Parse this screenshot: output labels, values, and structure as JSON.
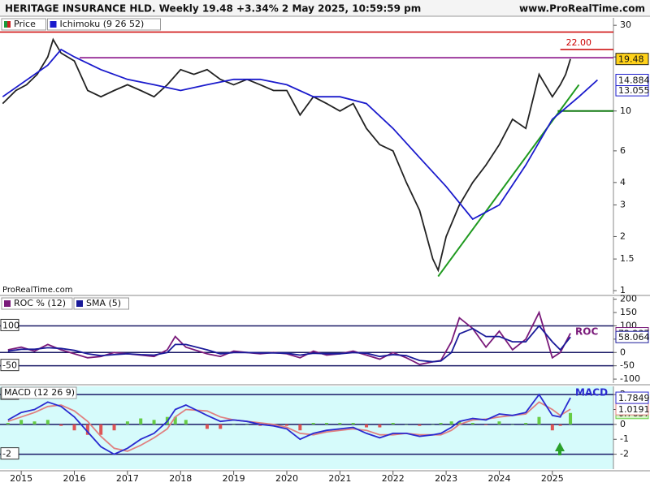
{
  "header": {
    "title": "HERITAGE INSURANCE HLD. Weekly 19.48 +3.34% 2 May 2025, 10:59:59 pm",
    "site": "www.ProRealTime.com"
  },
  "watermark": "ProRealTime.com",
  "chart_data": [
    {
      "type": "line",
      "log": true,
      "grid": false,
      "xlim": [
        2014.6,
        2026.15
      ],
      "ylim": [
        0.96,
        33
      ],
      "yticks": [
        1,
        1.5,
        2,
        3,
        4,
        6,
        10,
        20,
        30
      ],
      "series": [
        {
          "name": "Price",
          "color": "#222222",
          "legend_colors": [
            "#1a9a3a",
            "#cc2222"
          ],
          "last_label": "#ffd21a",
          "x": [
            2014.65,
            2014.9,
            2015.1,
            2015.3,
            2015.5,
            2015.6,
            2015.75,
            2016.0,
            2016.25,
            2016.5,
            2016.75,
            2017.0,
            2017.25,
            2017.5,
            2017.75,
            2018.0,
            2018.25,
            2018.5,
            2018.75,
            2019.0,
            2019.25,
            2019.5,
            2019.75,
            2020.0,
            2020.25,
            2020.5,
            2020.75,
            2021.0,
            2021.25,
            2021.5,
            2021.75,
            2022.0,
            2022.25,
            2022.5,
            2022.75,
            2022.85,
            2023.0,
            2023.25,
            2023.5,
            2023.75,
            2024.0,
            2024.25,
            2024.5,
            2024.75,
            2025.0,
            2025.15,
            2025.25,
            2025.34
          ],
          "values": [
            11,
            13,
            14,
            16,
            20,
            25,
            21,
            19,
            13,
            12,
            13,
            14,
            13,
            12,
            14,
            17,
            16,
            17,
            15,
            14,
            15,
            14,
            13,
            13,
            9.5,
            12,
            11,
            10,
            11,
            8,
            6.5,
            6,
            4,
            2.8,
            1.5,
            1.3,
            2,
            3,
            4,
            5,
            6.5,
            9,
            8,
            16,
            12,
            14,
            16,
            19.48
          ]
        },
        {
          "name": "Ichimoku (9 26 52)",
          "color": "#1a1acc",
          "last_label": "#ffffff",
          "x": [
            2014.65,
            2015.5,
            2015.75,
            2016.0,
            2016.5,
            2017.0,
            2017.5,
            2018.0,
            2018.5,
            2019.0,
            2019.5,
            2020.0,
            2020.5,
            2021.0,
            2021.5,
            2022.0,
            2022.5,
            2023.0,
            2023.5,
            2024.0,
            2024.5,
            2025.0,
            2025.5,
            2025.85
          ],
          "values": [
            12,
            18,
            22,
            20,
            17,
            15,
            14,
            13,
            14,
            15,
            15,
            14,
            12,
            12,
            11,
            8,
            5.5,
            3.8,
            2.5,
            3,
            5,
            9,
            12,
            14.884
          ]
        }
      ],
      "levels": [
        {
          "value": 27.5,
          "color": "#cc0000"
        },
        {
          "value": 22,
          "label": "22.00",
          "color": "#cc0000",
          "x": [
            2025.15,
            2026.15
          ],
          "label_at": "line"
        },
        {
          "value": 19.8,
          "color": "#800080",
          "x": [
            2016.1,
            2026.15
          ]
        },
        {
          "value": 13.055,
          "color": "#1a1acc",
          "line": false,
          "label_at": "right"
        }
      ],
      "trendlines": [
        {
          "x": [
            2022.85,
            2025.5
          ],
          "values": [
            1.2,
            14
          ],
          "color": "#1f9a1f"
        },
        {
          "x": [
            2025.1,
            2026.15
          ],
          "values": [
            10,
            10
          ],
          "color": "#137a13"
        }
      ]
    },
    {
      "type": "line",
      "log": false,
      "background": "#ffffff",
      "xlim": [
        2014.6,
        2026.15
      ],
      "ylim": [
        -115,
        208
      ],
      "yticks": [
        -100,
        -50,
        0,
        50,
        100,
        150,
        200
      ],
      "annotation": "ROC",
      "x": [
        2014.75,
        2015,
        2015.25,
        2015.5,
        2015.75,
        2016,
        2016.25,
        2016.5,
        2016.75,
        2017,
        2017.25,
        2017.5,
        2017.75,
        2017.9,
        2018.1,
        2018.5,
        2018.75,
        2019,
        2019.25,
        2019.5,
        2019.75,
        2020,
        2020.25,
        2020.5,
        2020.75,
        2021,
        2021.25,
        2021.5,
        2021.75,
        2022,
        2022.25,
        2022.5,
        2022.75,
        2022.9,
        2023.1,
        2023.25,
        2023.5,
        2023.75,
        2024,
        2024.25,
        2024.5,
        2024.75,
        2025,
        2025.15,
        2025.34
      ],
      "series": [
        {
          "name": "ROC % (12)",
          "color": "#7a1a7a",
          "last_label": "#ffffff",
          "values": [
            10,
            20,
            5,
            30,
            10,
            -5,
            -20,
            -15,
            0,
            -5,
            -10,
            -15,
            10,
            60,
            20,
            -5,
            -15,
            5,
            0,
            -5,
            0,
            -5,
            -20,
            5,
            -10,
            -5,
            5,
            -10,
            -25,
            0,
            -20,
            -45,
            -35,
            -30,
            40,
            130,
            90,
            20,
            80,
            10,
            50,
            150,
            -20,
            0,
            72.237
          ]
        },
        {
          "name": "SMA (5)",
          "color": "#1a1a99",
          "last_label": "#ffffff",
          "values": [
            5,
            12,
            12,
            18,
            15,
            8,
            -5,
            -12,
            -8,
            -5,
            -8,
            -10,
            0,
            30,
            30,
            10,
            -5,
            0,
            0,
            -2,
            -2,
            -3,
            -10,
            -3,
            -5,
            -5,
            0,
            -3,
            -15,
            -8,
            -12,
            -30,
            -35,
            -32,
            0,
            70,
            90,
            60,
            60,
            40,
            40,
            100,
            40,
            10,
            58.064
          ]
        }
      ],
      "levels": [
        {
          "value": 100,
          "color": "#1a1a66",
          "label_at": "left"
        },
        {
          "value": 0,
          "color": "#1a1a66"
        },
        {
          "value": -50,
          "color": "#1a1a66",
          "label_at": "left"
        }
      ]
    },
    {
      "type": "line",
      "log": false,
      "background": "#d6fbfb",
      "xlim": [
        2014.6,
        2026.15
      ],
      "ylim": [
        -3,
        2.55
      ],
      "yticks": [
        -2,
        -1,
        0,
        1,
        2
      ],
      "xticks": [
        2015,
        2016,
        2017,
        2018,
        2019,
        2020,
        2021,
        2022,
        2023,
        2024,
        2025
      ],
      "annotation": "MACD",
      "legend_title": "MACD (12 26 9)",
      "x": [
        2014.75,
        2015,
        2015.25,
        2015.5,
        2015.75,
        2016,
        2016.25,
        2016.5,
        2016.75,
        2017,
        2017.25,
        2017.5,
        2017.75,
        2017.9,
        2018.1,
        2018.5,
        2018.75,
        2019,
        2019.25,
        2019.5,
        2019.75,
        2020,
        2020.25,
        2020.5,
        2020.75,
        2021,
        2021.25,
        2021.5,
        2021.75,
        2022,
        2022.25,
        2022.5,
        2022.75,
        2022.9,
        2023.1,
        2023.25,
        2023.5,
        2023.75,
        2024,
        2024.25,
        2024.5,
        2024.75,
        2025,
        2025.15,
        2025.34
      ],
      "series": [
        {
          "kind": "histogram",
          "colors": [
            "#66cc44",
            "#dd5555"
          ],
          "last_label": "#d6f5c8",
          "values": [
            0.1,
            0.3,
            0.2,
            0.3,
            -0.1,
            -0.4,
            -0.7,
            -0.7,
            -0.4,
            0.2,
            0.4,
            0.3,
            0.5,
            0.5,
            0.3,
            -0.3,
            -0.3,
            0,
            0,
            -0.1,
            -0.1,
            -0.1,
            -0.4,
            0.1,
            0.1,
            0.1,
            0.1,
            -0.2,
            -0.2,
            0.1,
            0,
            -0.1,
            0,
            0.1,
            0.2,
            0.2,
            0.1,
            -0.05,
            0.2,
            0,
            0.1,
            0.5,
            -0.4,
            -0.1,
            0.7657
          ]
        },
        {
          "color": "#e08080",
          "last_label": "#ffffff",
          "values": [
            0.2,
            0.5,
            0.8,
            1.2,
            1.3,
            0.9,
            0.2,
            -0.8,
            -1.6,
            -1.8,
            -1.4,
            -0.9,
            -0.3,
            0.5,
            1.0,
            0.9,
            0.5,
            0.3,
            0.2,
            0.1,
            0,
            -0.2,
            -0.6,
            -0.7,
            -0.5,
            -0.4,
            -0.3,
            -0.4,
            -0.7,
            -0.7,
            -0.6,
            -0.7,
            -0.7,
            -0.7,
            -0.4,
            0,
            0.3,
            0.35,
            0.5,
            0.6,
            0.7,
            1.5,
            1.0,
            0.6,
            1.0191
          ]
        },
        {
          "color": "#2a2ad0",
          "last_label": "#ffffff",
          "values": [
            0.3,
            0.8,
            1.0,
            1.5,
            1.2,
            0.5,
            -0.5,
            -1.5,
            -2.0,
            -1.6,
            -1.0,
            -0.6,
            0.2,
            1.0,
            1.3,
            0.6,
            0.2,
            0.3,
            0.2,
            0,
            -0.1,
            -0.3,
            -1.0,
            -0.6,
            -0.4,
            -0.3,
            -0.2,
            -0.6,
            -0.9,
            -0.6,
            -0.6,
            -0.8,
            -0.7,
            -0.6,
            -0.2,
            0.2,
            0.4,
            0.3,
            0.7,
            0.6,
            0.8,
            2.0,
            0.6,
            0.5,
            1.7849
          ]
        }
      ],
      "levels": [
        {
          "value": 2,
          "color": "#1a1a66",
          "label_at": "left"
        },
        {
          "value": 0,
          "color": "#1a1a66"
        },
        {
          "value": -2,
          "color": "#1a1a66",
          "label_at": "left"
        }
      ]
    }
  ]
}
